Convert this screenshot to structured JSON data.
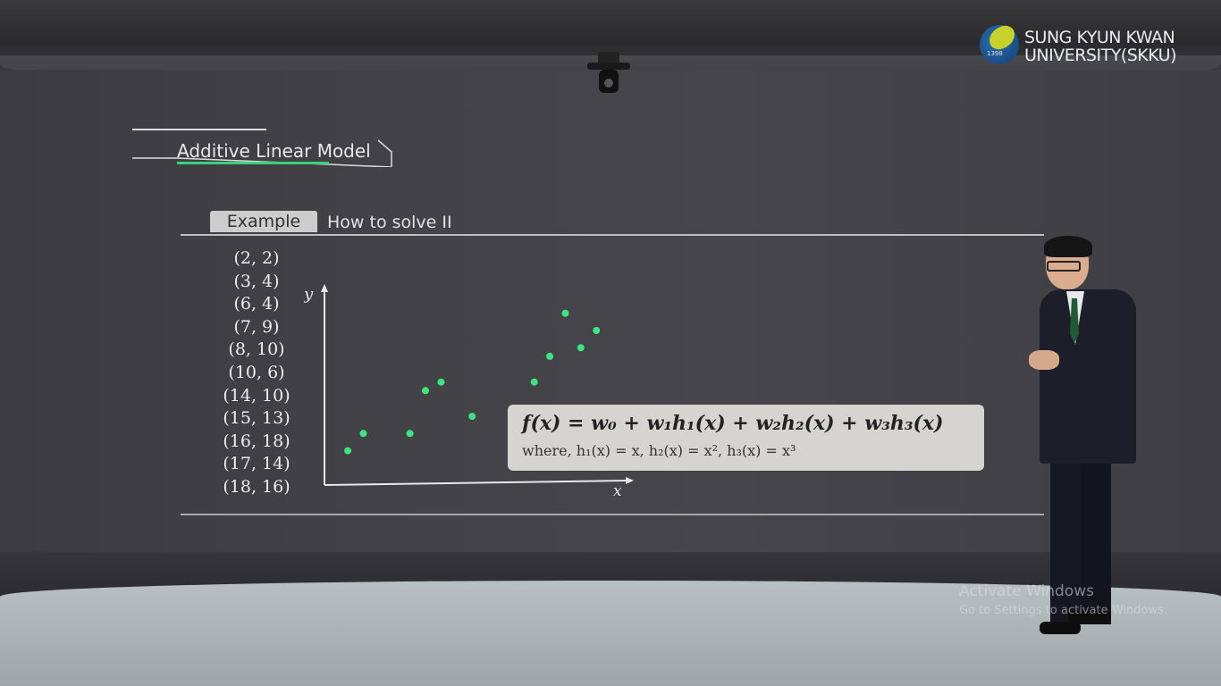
{
  "logo": {
    "line1": "SUNG KYUN KWAN",
    "line2": "UNIVERSITY(SKKU)",
    "year": "1398"
  },
  "title": "Additive Linear Model",
  "tabs": {
    "example": "Example",
    "how": "How to solve  II"
  },
  "formula": {
    "main": "f(x) = w₀ + w₁h₁(x) + w₂h₂(x) + w₃h₃(x)",
    "sub": "where, h₁(x) = x, h₂(x) = x², h₃(x) = x³"
  },
  "watermark": {
    "title": "Activate Windows",
    "subtitle": "Go to Settings to activate Windows."
  },
  "chart_data": {
    "type": "scatter",
    "title": "",
    "xlabel": "x",
    "ylabel": "y",
    "point_labels": [
      "(2, 2)",
      "(3, 4)",
      "(6, 4)",
      "(7, 9)",
      "(8, 10)",
      "(10, 6)",
      "(14, 10)",
      "(15, 13)",
      "(16, 18)",
      "(17, 14)",
      "(18, 16)"
    ],
    "x": [
      2,
      3,
      6,
      7,
      8,
      10,
      14,
      15,
      16,
      17,
      18
    ],
    "y": [
      2,
      4,
      4,
      9,
      10,
      6,
      10,
      13,
      18,
      14,
      16
    ],
    "xlim": [
      0.5,
      20
    ],
    "ylim": [
      -2,
      21
    ],
    "grid": false,
    "point_color": "#3ee57f"
  }
}
